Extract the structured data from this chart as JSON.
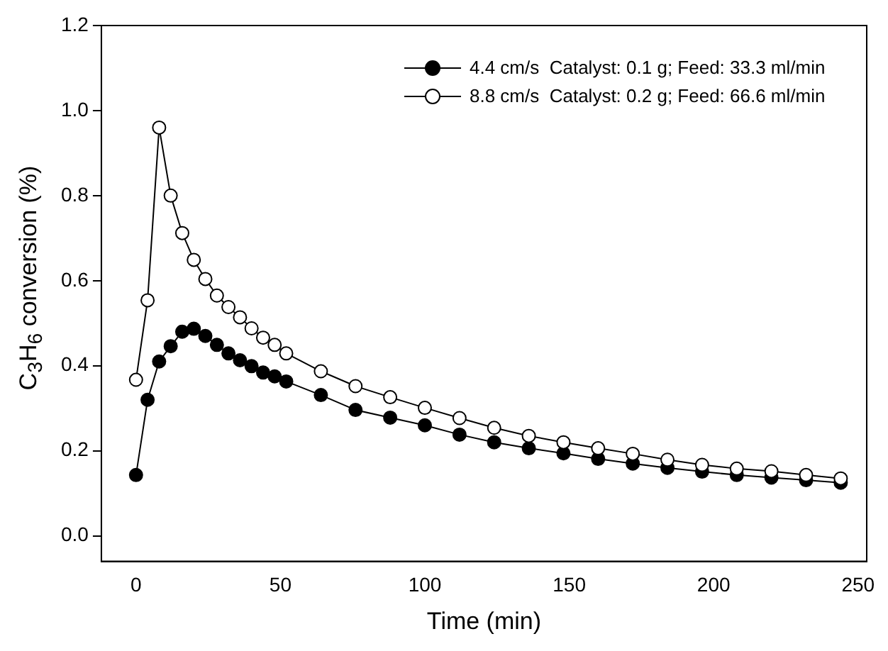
{
  "chart_data": {
    "type": "line",
    "xlabel": "Time (min)",
    "ylabel": "C$_{3}$H$_{6}$ conversion (%)",
    "xlim": [
      -12,
      253
    ],
    "xticks": [
      0,
      50,
      100,
      150,
      200,
      250
    ],
    "ylim": [
      -0.06,
      1.2
    ],
    "yticks": [
      {
        "value": 0,
        "label": "0.0"
      },
      {
        "value": 0.2,
        "label": "0.2"
      },
      {
        "value": 0.4,
        "label": "0.4"
      },
      {
        "value": 0.6,
        "label": "0.6"
      },
      {
        "value": 0.8,
        "label": "0.8"
      },
      {
        "value": 1,
        "label": "1.0"
      },
      {
        "value": 1.2,
        "label": "1.2"
      }
    ],
    "grid": false,
    "legend": "top",
    "marker": "circle",
    "line_style": "solid",
    "x": [
      0,
      4,
      8,
      12,
      16,
      20,
      24,
      28,
      32,
      36,
      40,
      44,
      48,
      52,
      64,
      76,
      88,
      100,
      112,
      124,
      136,
      148,
      160,
      172,
      184,
      196,
      208,
      220,
      232,
      244
    ],
    "series": [
      {
        "name": "4.4 cm/s  Catalyst: 0.1 g; Feed: 33.3 ml/min",
        "color": "#000000",
        "values": [
          0.143,
          0.32,
          0.41,
          0.446,
          0.48,
          0.487,
          0.47,
          0.449,
          0.429,
          0.413,
          0.399,
          0.384,
          0.375,
          0.363,
          0.331,
          0.296,
          0.278,
          0.26,
          0.238,
          0.22,
          0.206,
          0.194,
          0.181,
          0.17,
          0.16,
          0.151,
          0.143,
          0.137,
          0.131,
          0.125
        ]
      },
      {
        "name": "8.8 cm/s  Catalyst: 0.2 g; Feed: 66.6 ml/min",
        "color": "#ffffff",
        "values": [
          0.367,
          0.554,
          0.96,
          0.8,
          0.712,
          0.649,
          0.604,
          0.565,
          0.538,
          0.514,
          0.488,
          0.466,
          0.449,
          0.429,
          0.387,
          0.352,
          0.326,
          0.301,
          0.277,
          0.254,
          0.235,
          0.22,
          0.206,
          0.193,
          0.179,
          0.167,
          0.158,
          0.152,
          0.143,
          0.135
        ]
      }
    ]
  }
}
